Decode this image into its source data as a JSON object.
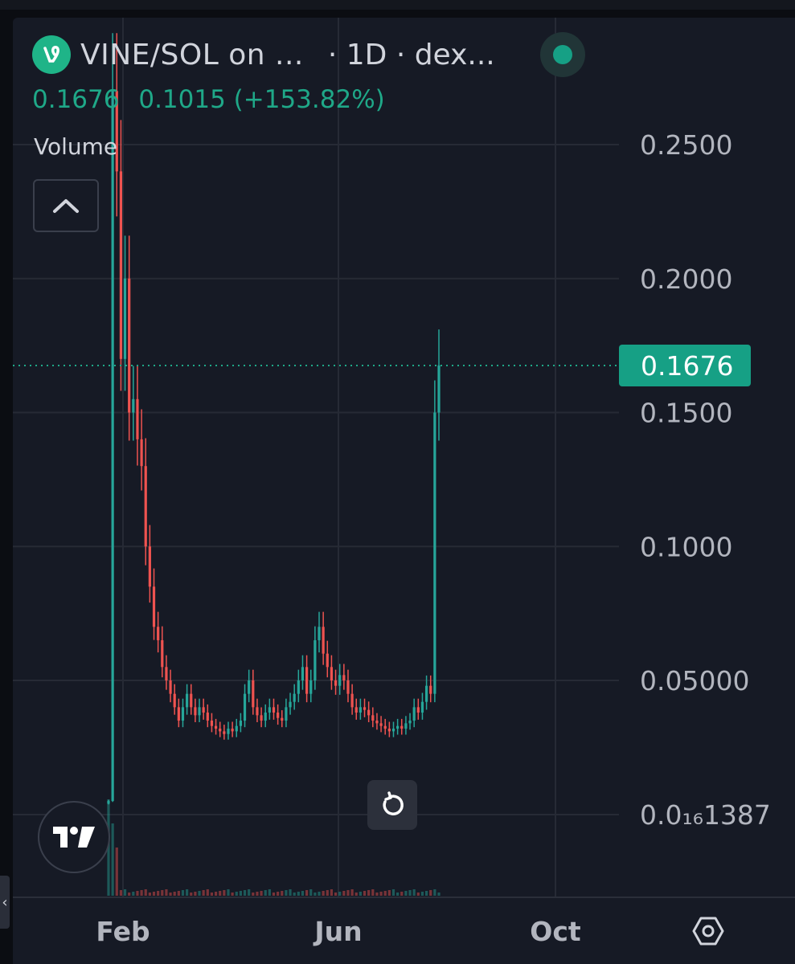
{
  "header": {
    "symbol": "VINE/SOL on ...",
    "interval": "· 1D · dex...",
    "last_price": "0.1676",
    "change": "0.1015 (+153.82%)",
    "volume_label": "Volume",
    "status_color": "#16a085"
  },
  "icons": {
    "logo": "vine-logo-icon",
    "collapse": "chevron-up-icon",
    "reset": "reset-icon",
    "tradingview": "tradingview-logo-icon",
    "settings": "settings-hexagon-icon",
    "scroll_left": "chevron-left-icon"
  },
  "colors": {
    "up": "#26a69a",
    "down": "#ef5350",
    "accent": "#1fa888",
    "background": "#161a25"
  },
  "chart_data": {
    "type": "candlestick",
    "interval": "1D",
    "y_ticks": [
      "0.2500",
      "0.2000",
      "0.1500",
      "0.1000",
      "0.05000"
    ],
    "y_tick_values": [
      0.25,
      0.2,
      0.15,
      0.1,
      0.05
    ],
    "y_low_label": "0.0₁₆1387",
    "x_ticks": [
      "Feb",
      "Jun",
      "Oct"
    ],
    "current_price_label": "0.1676",
    "current_price": 0.1676,
    "ylim": [
      0,
      0.3
    ],
    "grid": true,
    "series": [
      {
        "name": "close",
        "values": [
          0.005,
          0.27,
          0.24,
          0.17,
          0.2,
          0.15,
          0.155,
          0.14,
          0.13,
          0.1,
          0.085,
          0.07,
          0.065,
          0.055,
          0.05,
          0.045,
          0.04,
          0.035,
          0.04,
          0.045,
          0.04,
          0.037,
          0.04,
          0.038,
          0.035,
          0.033,
          0.032,
          0.031,
          0.03,
          0.032,
          0.031,
          0.033,
          0.035,
          0.045,
          0.05,
          0.04,
          0.037,
          0.035,
          0.038,
          0.04,
          0.038,
          0.036,
          0.035,
          0.04,
          0.042,
          0.045,
          0.05,
          0.055,
          0.045,
          0.05,
          0.065,
          0.07,
          0.06,
          0.055,
          0.05,
          0.048,
          0.052,
          0.05,
          0.045,
          0.04,
          0.038,
          0.04,
          0.039,
          0.037,
          0.035,
          0.034,
          0.033,
          0.032,
          0.031,
          0.032,
          0.033,
          0.032,
          0.034,
          0.035,
          0.04,
          0.038,
          0.042,
          0.048,
          0.045,
          0.15,
          0.1676
        ]
      }
    ]
  }
}
